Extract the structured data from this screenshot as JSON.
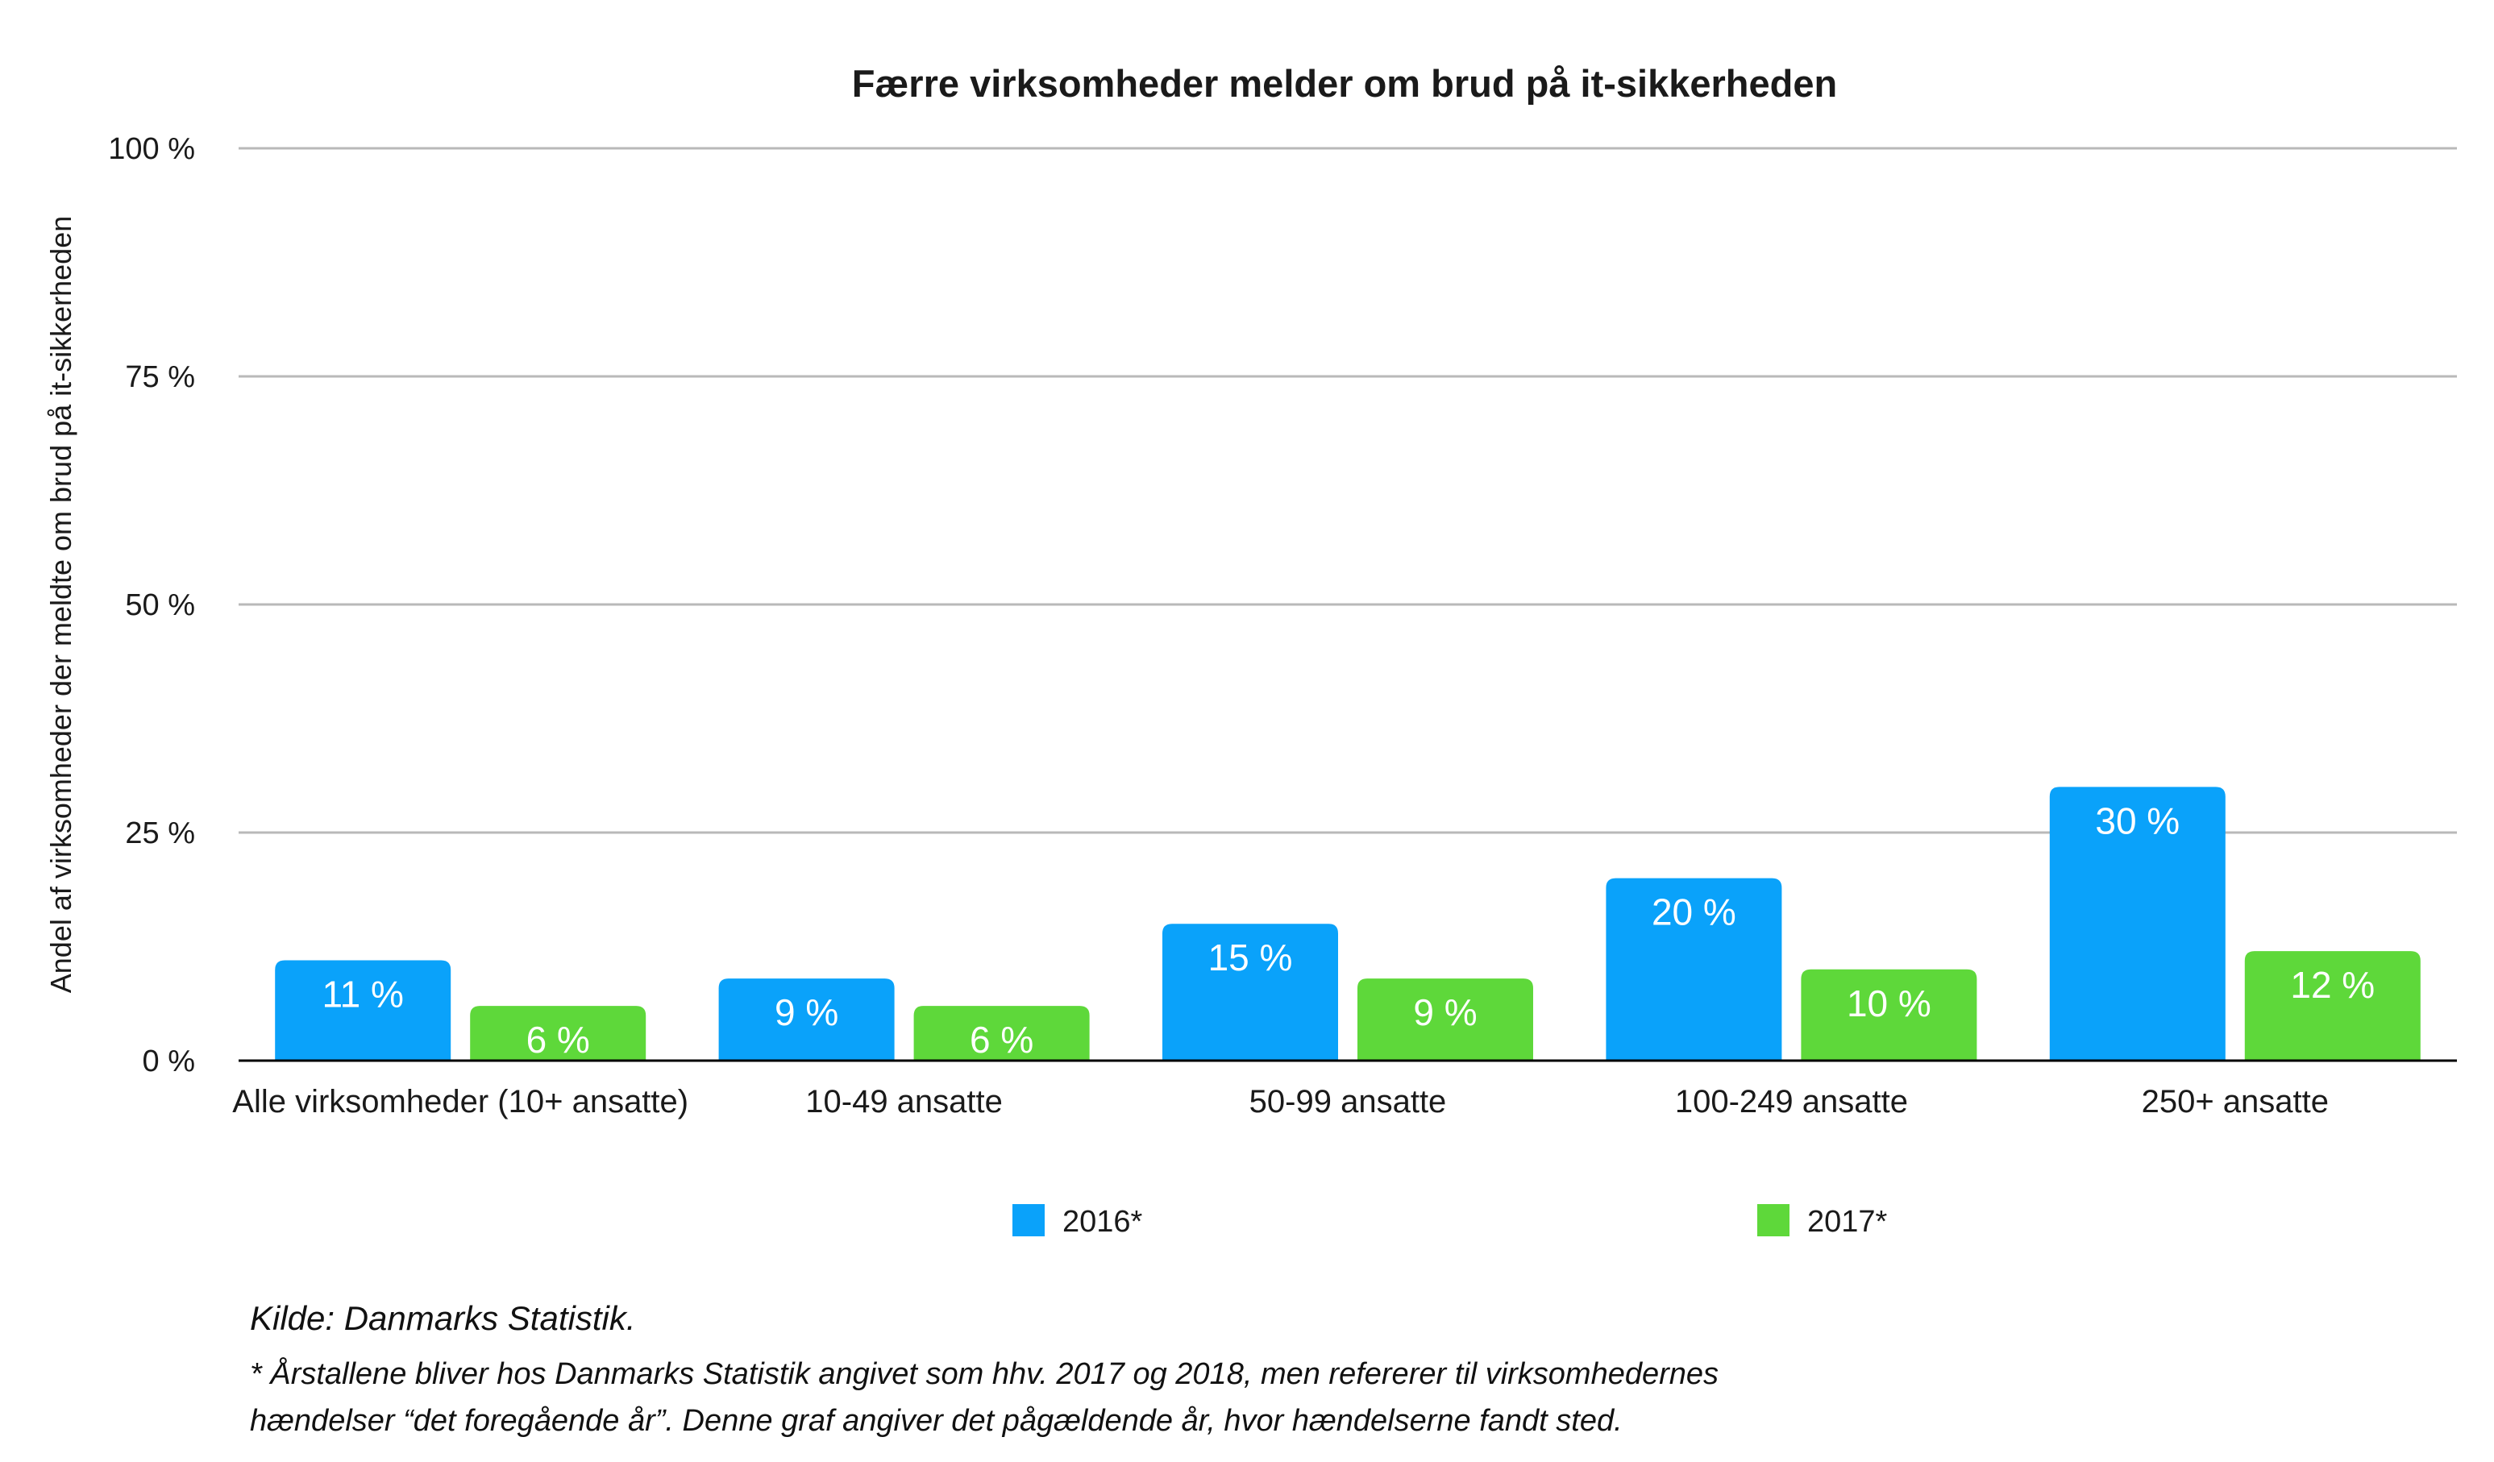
{
  "chart_data": {
    "type": "bar",
    "title": "Færre virksomheder melder om brud på it-sikkerheden",
    "xlabel": "",
    "ylabel": "Andel af virksomheder der meldte om brud på it-sikkerheden",
    "ylim": [
      0,
      100
    ],
    "yticks": [
      0,
      25,
      50,
      75,
      100
    ],
    "ytick_labels": [
      "0 %",
      "25 %",
      "50 %",
      "75 %",
      "100 %"
    ],
    "grid": true,
    "legend_position": "bottom",
    "categories": [
      "Alle virksomheder (10+ ansatte)",
      "10-49 ansatte",
      "50-99 ansatte",
      "100-249 ansatte",
      "250+ ansatte"
    ],
    "series": [
      {
        "name": "2016*",
        "color": "#0aa2fa",
        "values": [
          11,
          9,
          15,
          20,
          30
        ],
        "labels": [
          "11 %",
          "9 %",
          "15 %",
          "20 %",
          "30 %"
        ]
      },
      {
        "name": "2017*",
        "color": "#5ed83a",
        "values": [
          6,
          6,
          9,
          10,
          12
        ],
        "labels": [
          "6 %",
          "6 %",
          "9 %",
          "10 %",
          "12 %"
        ]
      }
    ]
  },
  "source": "Kilde: Danmarks Statistik.",
  "footnote_line1": "* Årstallene bliver hos Danmarks Statistik angivet som hhv. 2017 og 2018, men refererer til virksomhedernes",
  "footnote_line2": "hændelser “det foregående år”. Denne graf angiver det pågældende år, hvor hændelserne fandt sted."
}
